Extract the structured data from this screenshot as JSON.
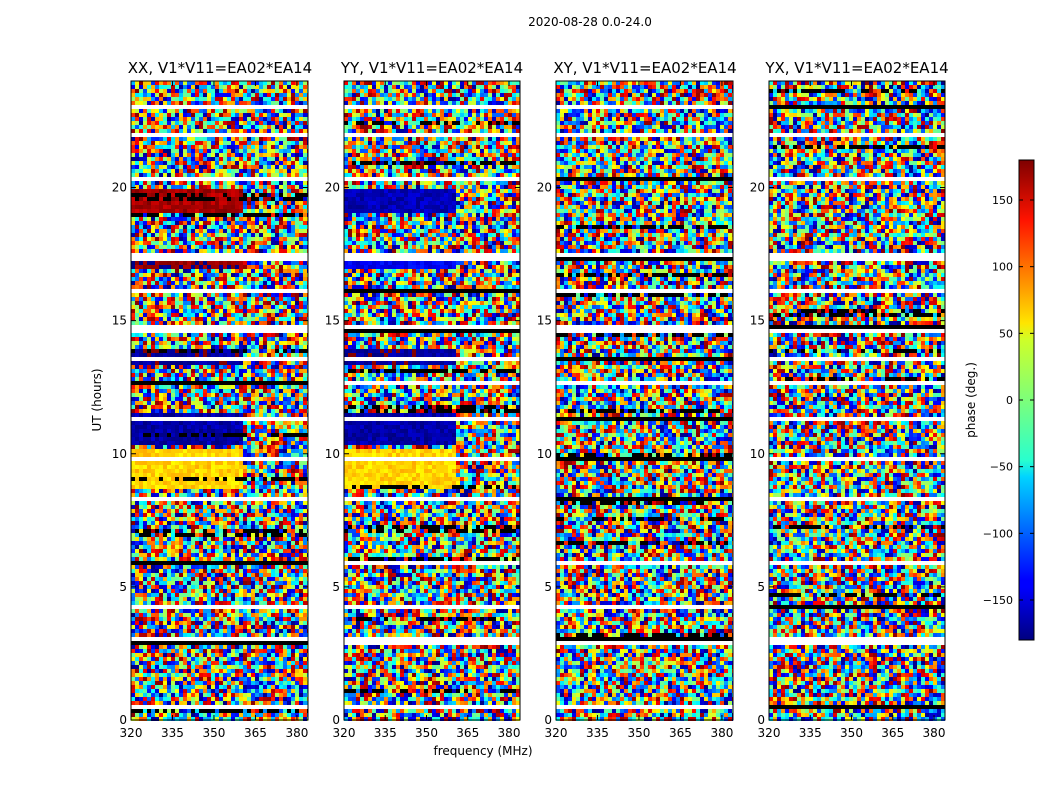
{
  "chart_data": {
    "type": "heatmap",
    "suptitle": "2020-08-28 0.0-24.0",
    "xlabel": "frequency (MHz)",
    "ylabel": "UT (hours)",
    "xlim": [
      320,
      384
    ],
    "ylim": [
      0,
      24
    ],
    "x_ticks": [
      320,
      335,
      350,
      365,
      380
    ],
    "y_ticks": [
      0,
      5,
      10,
      15,
      20
    ],
    "panels": [
      {
        "title": "XX, V1*V11=EA02*EA14",
        "polarization": "XX"
      },
      {
        "title": "YY, V1*V11=EA02*EA14",
        "polarization": "YY"
      },
      {
        "title": "XY, V1*V11=EA02*EA14",
        "polarization": "XY"
      },
      {
        "title": "YX, V1*V11=EA02*EA14",
        "polarization": "YX"
      }
    ],
    "colorbar": {
      "label": "phase (deg.)",
      "range": [
        -180,
        180
      ],
      "ticks": [
        -150,
        -100,
        -50,
        0,
        50,
        100,
        150
      ],
      "tick_labels": [
        "−150",
        "−100",
        "−50",
        "0",
        "50",
        "100",
        "150"
      ],
      "colormap": "jet"
    },
    "flagged_ut_bands": [
      [
        2.75,
        3.05
      ],
      [
        5.85,
        5.98
      ],
      [
        8.2,
        8.45
      ],
      [
        11.25,
        11.35
      ],
      [
        12.65,
        12.78
      ],
      [
        14.6,
        14.82
      ],
      [
        17.2,
        17.5
      ],
      [
        21.9,
        22.0
      ],
      [
        0.45,
        0.52
      ],
      [
        1.55,
        1.6
      ],
      [
        4.2,
        4.25
      ],
      [
        7.1,
        7.15
      ],
      [
        9.8,
        9.85
      ],
      [
        13.55,
        13.6
      ],
      [
        16.1,
        16.15
      ],
      [
        18.6,
        18.65
      ],
      [
        20.3,
        20.35
      ],
      [
        23.0,
        23.05
      ]
    ],
    "coherent_features": [
      {
        "panel": "XX",
        "ut": [
          19.0,
          19.9
        ],
        "freq": [
          320,
          361
        ],
        "phase": 165
      },
      {
        "panel": "XX",
        "ut": [
          16.9,
          17.2
        ],
        "freq": [
          320,
          361
        ],
        "phase": 175
      },
      {
        "panel": "XX",
        "ut": [
          13.3,
          14.0
        ],
        "freq": [
          320,
          361
        ],
        "phase": -170
      },
      {
        "panel": "XX",
        "ut": [
          10.4,
          11.5
        ],
        "freq": [
          320,
          361
        ],
        "phase": -165
      },
      {
        "panel": "XX",
        "ut": [
          8.7,
          10.2
        ],
        "freq": [
          320,
          361
        ],
        "phase": 60
      },
      {
        "panel": "YY",
        "ut": [
          19.0,
          19.9
        ],
        "freq": [
          320,
          361
        ],
        "phase": -160
      },
      {
        "panel": "YY",
        "ut": [
          16.9,
          17.2
        ],
        "freq": [
          320,
          361
        ],
        "phase": -140
      },
      {
        "panel": "YY",
        "ut": [
          13.3,
          14.0
        ],
        "freq": [
          320,
          361
        ],
        "phase": -170
      },
      {
        "panel": "YY",
        "ut": [
          10.4,
          11.5
        ],
        "freq": [
          320,
          361
        ],
        "phase": -165
      },
      {
        "panel": "YY",
        "ut": [
          8.7,
          10.2
        ],
        "freq": [
          320,
          361
        ],
        "phase": 60
      }
    ]
  }
}
